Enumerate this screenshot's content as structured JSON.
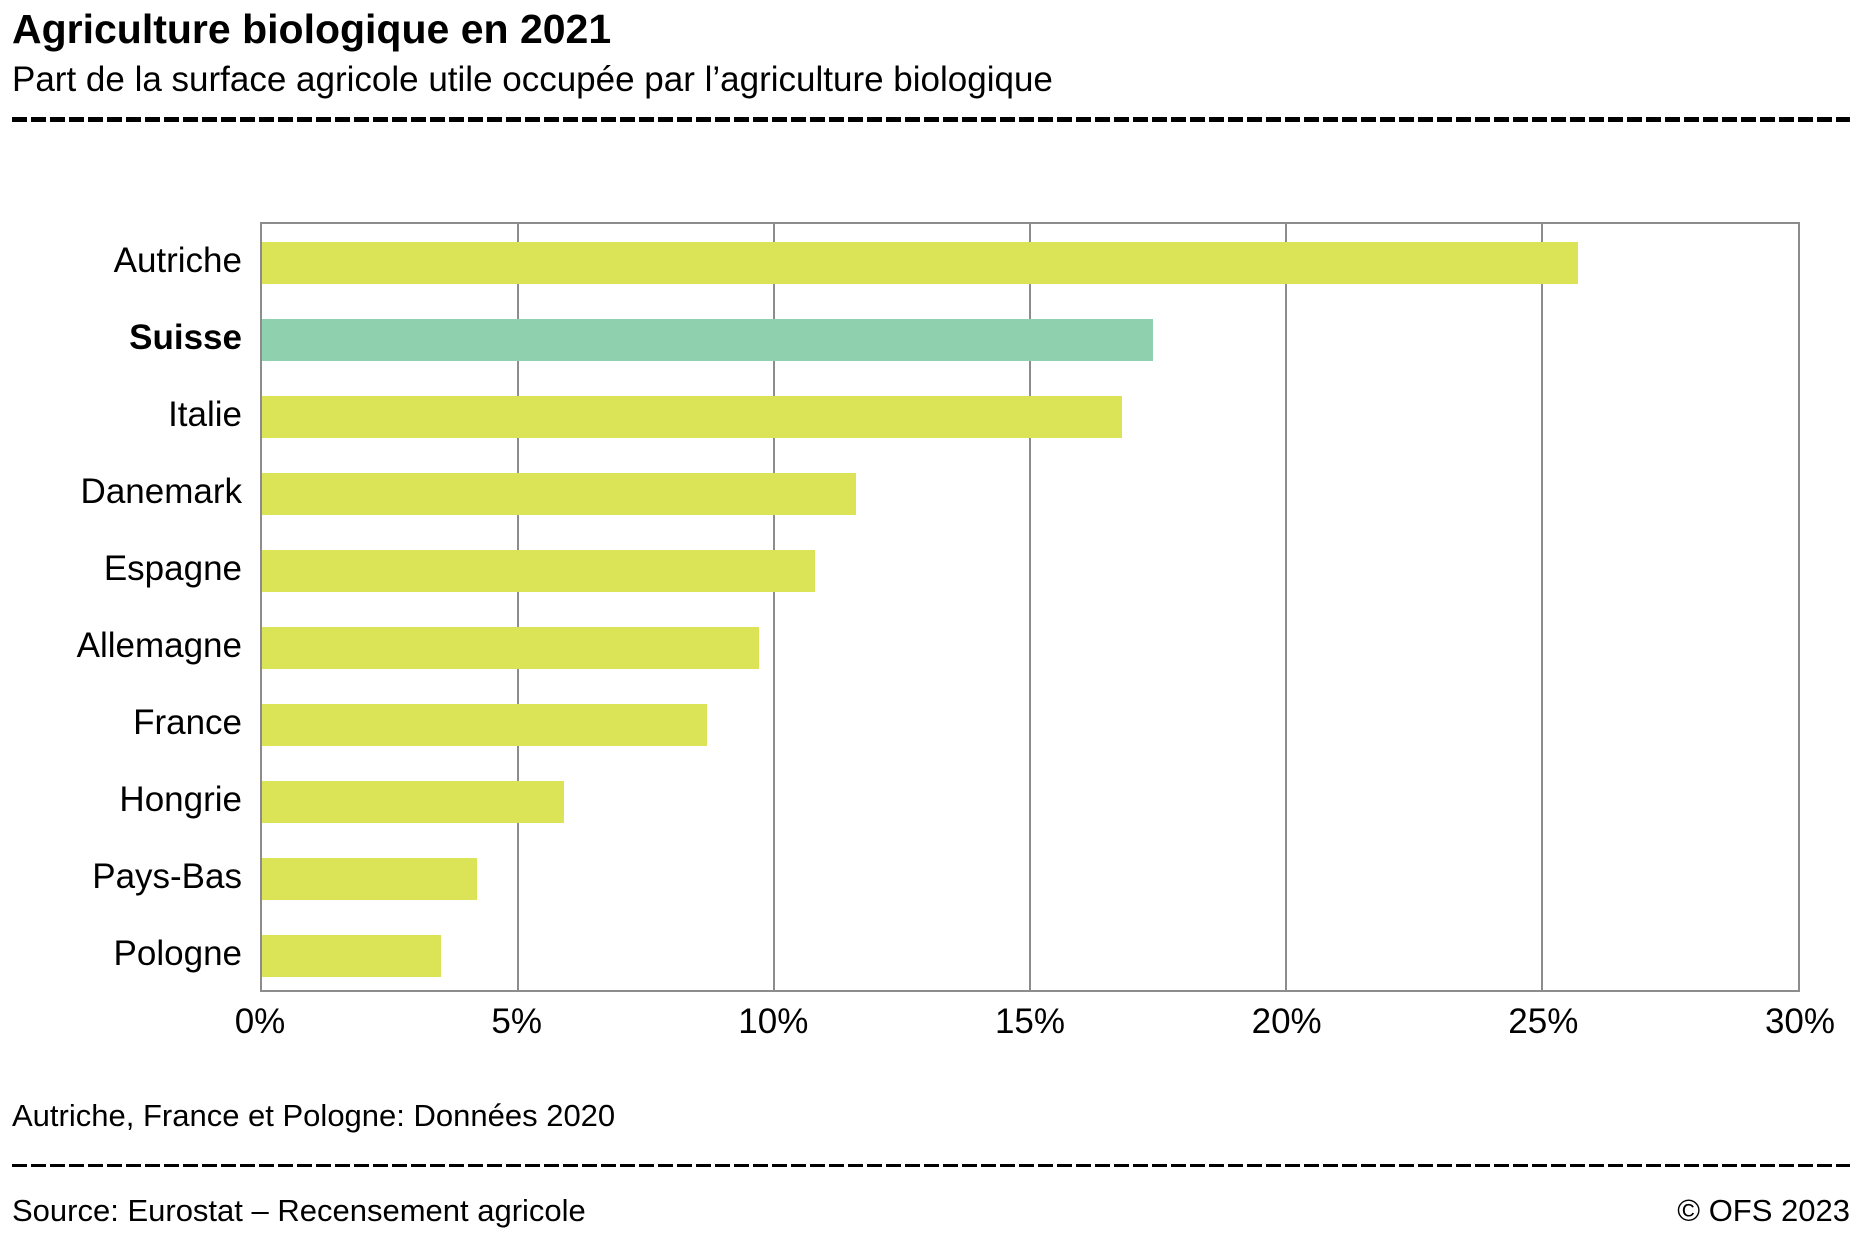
{
  "header": {
    "title": "Agriculture biologique en 2021",
    "subtitle": "Part de la surface agricole utile occupée par l’agriculture biologique"
  },
  "footnote": "Autriche, France et Pologne: Données 2020",
  "footer": {
    "source": "Source: Eurostat –  Recensement agricole",
    "copyright": "© OFS 2023"
  },
  "chart_data": {
    "type": "bar",
    "orientation": "horizontal",
    "title": "Agriculture biologique en 2021",
    "subtitle": "Part de la surface agricole utile occupée par l’agriculture biologique",
    "categories": [
      "Autriche",
      "Suisse",
      "Italie",
      "Danemark",
      "Espagne",
      "Allemagne",
      "France",
      "Hongrie",
      "Pays-Bas",
      "Pologne"
    ],
    "values": [
      25.7,
      17.4,
      16.8,
      11.6,
      10.8,
      9.7,
      8.7,
      5.9,
      4.2,
      3.5
    ],
    "unit": "%",
    "xlim": [
      0,
      30
    ],
    "x_ticks": [
      {
        "value": 0,
        "label": "0%"
      },
      {
        "value": 5,
        "label": "5%"
      },
      {
        "value": 10,
        "label": "10%"
      },
      {
        "value": 15,
        "label": "15%"
      },
      {
        "value": 20,
        "label": "20%"
      },
      {
        "value": 25,
        "label": "25%"
      },
      {
        "value": 30,
        "label": "30%"
      }
    ],
    "grid": true,
    "highlight_category": "Suisse",
    "colors": {
      "default_bar": "#dbe357",
      "highlight_bar": "#8fd0ae",
      "gridline": "#8c8c8c",
      "frame": "#8c8c8c"
    },
    "legend_position": "none"
  }
}
